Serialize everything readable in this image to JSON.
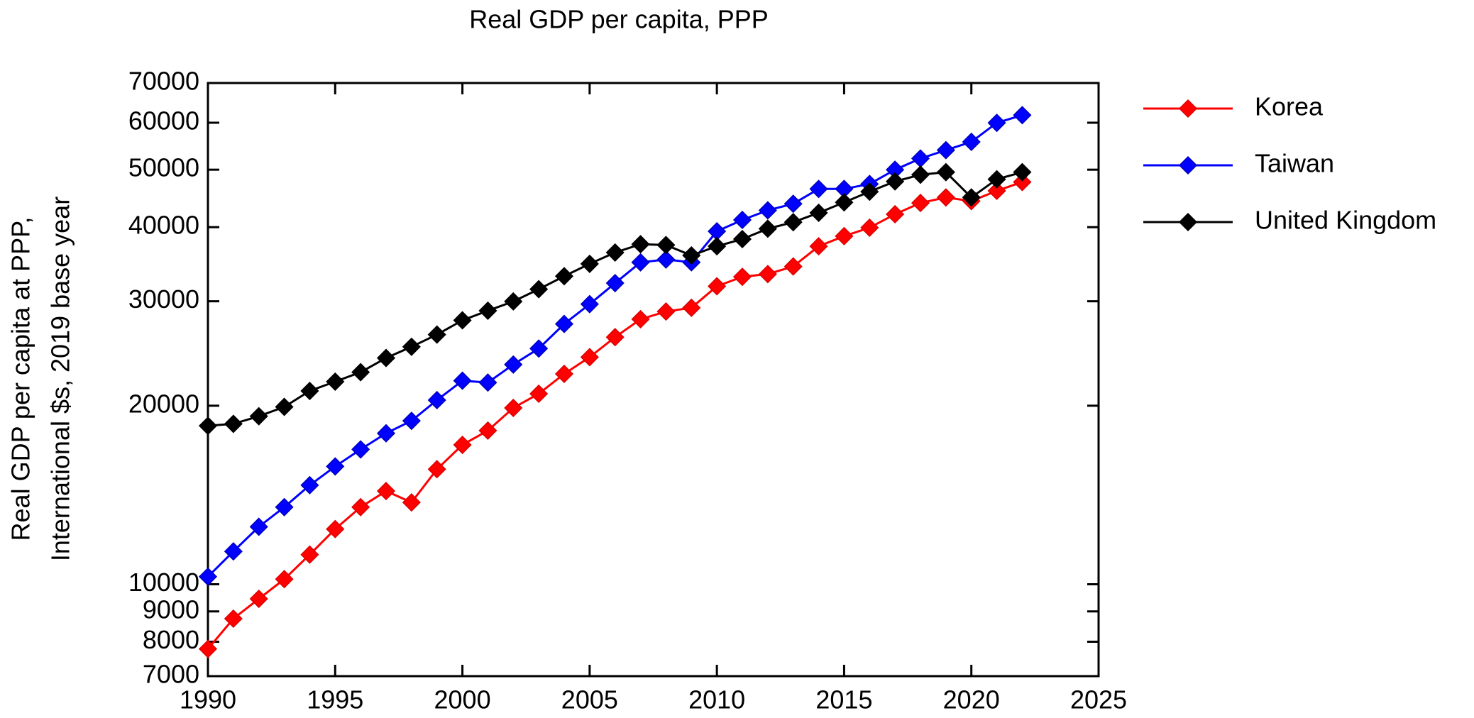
{
  "chart_data": {
    "type": "line",
    "title": "Real GDP per capita, PPP",
    "ylabel": [
      "Real GDP per capita at PPP,",
      "International $s, 2019 base year"
    ],
    "x": [
      1990,
      1991,
      1992,
      1993,
      1994,
      1995,
      1996,
      1997,
      1998,
      1999,
      2000,
      2001,
      2002,
      2003,
      2004,
      2005,
      2006,
      2007,
      2008,
      2009,
      2010,
      2011,
      2012,
      2013,
      2014,
      2015,
      2016,
      2017,
      2018,
      2019,
      2020,
      2021,
      2022
    ],
    "series": [
      {
        "name": "Korea",
        "color": "#ff0000",
        "marker_edge": "#e00000",
        "values": [
          7780,
          8750,
          9450,
          10200,
          11220,
          12390,
          13490,
          14360,
          13740,
          15630,
          17180,
          18160,
          19830,
          20950,
          22630,
          24150,
          26100,
          27980,
          28830,
          29250,
          31800,
          32990,
          33340,
          34340,
          37140,
          38630,
          39920,
          42060,
          43940,
          44890,
          44260,
          46060,
          47660
        ]
      },
      {
        "name": "Taiwan",
        "color": "#0000ff",
        "marker_edge": "#0000c0",
        "values": [
          10300,
          11360,
          12500,
          13490,
          14690,
          15800,
          16880,
          17970,
          18860,
          20440,
          22040,
          21880,
          23470,
          24970,
          27470,
          29670,
          32190,
          34890,
          35280,
          34900,
          39360,
          41140,
          42700,
          43800,
          46400,
          46400,
          47300,
          49990,
          52220,
          53940,
          55700,
          59970,
          61790
        ]
      },
      {
        "name": "United Kingdom",
        "color": "#000000",
        "marker_edge": "#000000",
        "values": [
          18500,
          18640,
          19200,
          19910,
          21180,
          21960,
          22780,
          24070,
          25140,
          26360,
          27860,
          28920,
          29980,
          31440,
          33070,
          34690,
          36250,
          37440,
          37320,
          35840,
          37140,
          38190,
          39760,
          40780,
          42290,
          44040,
          45910,
          47770,
          49030,
          49520,
          44890,
          48180,
          49520
        ]
      }
    ],
    "xlim": [
      1990,
      2025
    ],
    "xticks": [
      1990,
      1995,
      2000,
      2005,
      2010,
      2015,
      2020,
      2025
    ],
    "ylim": [
      7000,
      70000
    ],
    "yticks": [
      7000,
      8000,
      9000,
      10000,
      20000,
      30000,
      40000,
      50000,
      60000,
      70000
    ],
    "log_y": true,
    "grid": false,
    "legend": "outside-right"
  }
}
